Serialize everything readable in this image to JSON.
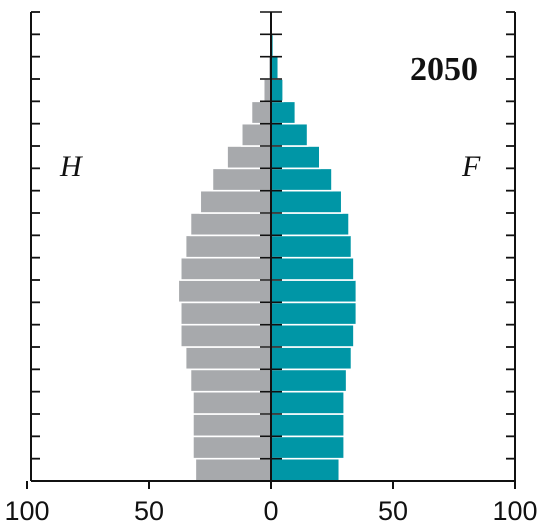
{
  "chart_data": {
    "type": "bar",
    "orientation": "horizontal-population-pyramid",
    "title": "2050",
    "left_label": "H",
    "right_label": "F",
    "x_ticks": [
      "100",
      "50",
      "0",
      "50",
      "100"
    ],
    "xlim": [
      -100,
      100
    ],
    "grid": false,
    "age_groups_count": 21,
    "series": [
      {
        "name": "H",
        "color": "#a7a9ac",
        "values": [
          31,
          32,
          32,
          32,
          33,
          35,
          37,
          37,
          38,
          37,
          35,
          33,
          29,
          24,
          18,
          12,
          8,
          3,
          1,
          0.5,
          0
        ]
      },
      {
        "name": "F",
        "color": "#0096a6",
        "values": [
          28,
          30,
          30,
          30,
          31,
          33,
          34,
          35,
          35,
          34,
          33,
          32,
          29,
          25,
          20,
          15,
          10,
          5,
          3,
          1,
          0.5
        ]
      }
    ]
  },
  "colors": {
    "male": "#a7a9ac",
    "female": "#0096a6",
    "axis": "#111111"
  }
}
